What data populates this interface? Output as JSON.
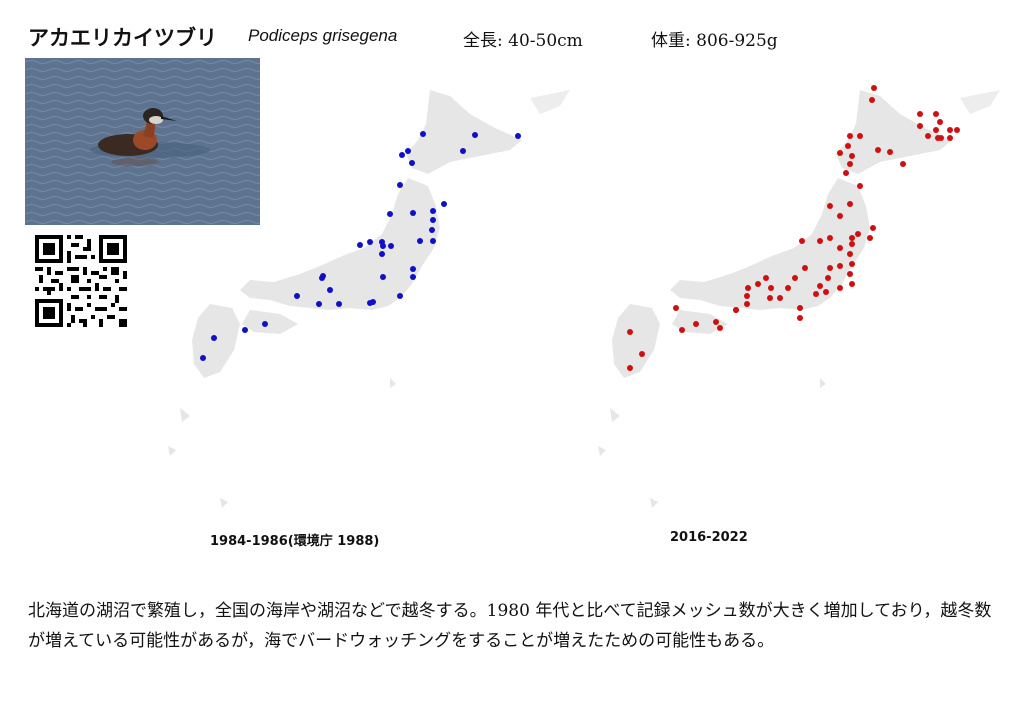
{
  "header": {
    "name_ja": "アカエリカイツブリ",
    "name_sci": "Podiceps grisegena",
    "length": "全長: 40-50cm",
    "weight": "体重: 806-925g"
  },
  "photo": {
    "subject": "grebe-on-water"
  },
  "qr": {
    "label": "qr-code"
  },
  "maps": {
    "left": {
      "caption": "1984-1986(環境庁 1988)",
      "dot_color": "#1010c8"
    },
    "right": {
      "caption": "2016-2022",
      "dot_color": "#d01010"
    },
    "land_color": "#e6e6e6"
  },
  "description": "北海道の湖沼で繁殖し，全国の海岸や湖沼などで越冬する。1980 年代と比べて記録メッシュ数が大きく増加しており，越冬数が増えている可能性があるが，海でバードウォッチングをすることが増えたための可能性もある。"
}
